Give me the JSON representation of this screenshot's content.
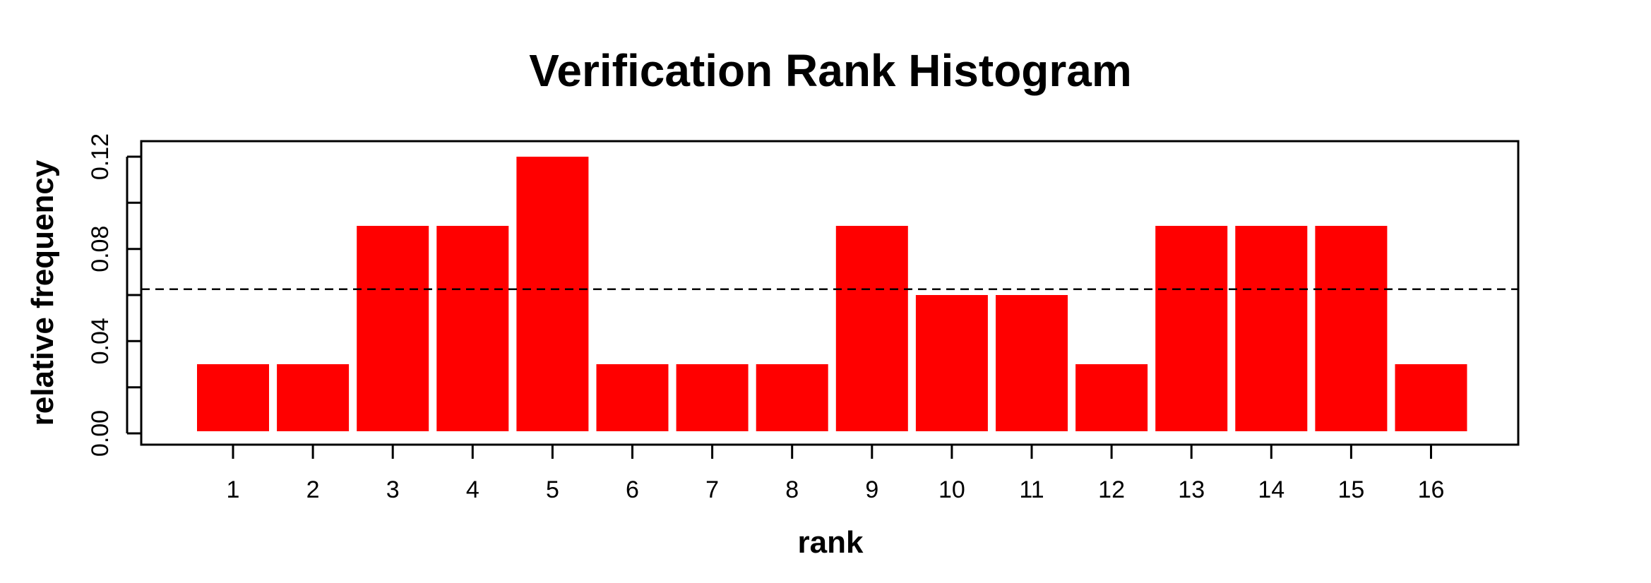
{
  "chart_data": {
    "type": "bar",
    "title": "Verification Rank Histogram",
    "xlabel": "rank",
    "ylabel": "relative frequency",
    "categories": [
      "1",
      "2",
      "3",
      "4",
      "5",
      "6",
      "7",
      "8",
      "9",
      "10",
      "11",
      "12",
      "13",
      "14",
      "15",
      "16"
    ],
    "values": [
      0.03,
      0.03,
      0.09,
      0.09,
      0.12,
      0.03,
      0.03,
      0.03,
      0.09,
      0.06,
      0.06,
      0.03,
      0.09,
      0.09,
      0.09,
      0.03
    ],
    "ylim": [
      0,
      0.12
    ],
    "yticks": [
      0.0,
      0.04,
      0.08,
      0.12
    ],
    "ytick_labels": [
      "0.00",
      "0.04",
      "0.08",
      "0.12"
    ],
    "reference_line": 0.0625,
    "grid": false,
    "legend": "none",
    "colors": {
      "bar": "#ff0000",
      "axis": "#000000",
      "reference_line": "#000000"
    }
  }
}
